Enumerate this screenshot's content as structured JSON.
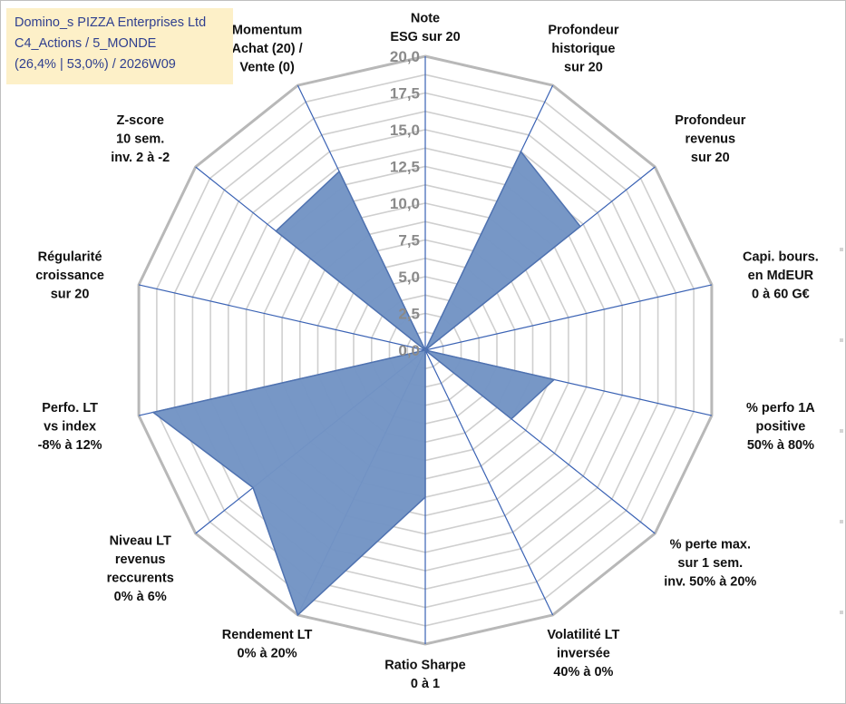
{
  "info_box": {
    "line1": "Domino_s PIZZA Enterprises Ltd",
    "line2": "C4_Actions / 5_MONDE",
    "line3": "(26,4% | 53,0%) / 2026W09"
  },
  "colors": {
    "series_fill": "#7394c4",
    "series_stroke": "#4f72b0",
    "spoke": "#3a62b4",
    "outer_ring": "#b8b8b8",
    "inner_ring": "#cfcfcf",
    "info_box_bg": "#fdf0c8",
    "info_box_text": "#2f3f8f",
    "label_text": "#111111",
    "tick_text": "#8a8a8a"
  },
  "chart_data": {
    "type": "radar",
    "title": "",
    "rmin": 0,
    "rmax": 20,
    "rings": 16,
    "grid": true,
    "legend": "none",
    "tick_labels": [
      "0,0",
      "2,5",
      "5,0",
      "7,5",
      "10,0",
      "12,5",
      "15,0",
      "17,5",
      "20,0"
    ],
    "axes": [
      [
        "Note",
        "ESG sur 20"
      ],
      [
        "Profondeur",
        "historique",
        "sur 20"
      ],
      [
        "Profondeur",
        "revenus",
        "sur 20"
      ],
      [
        "Capi. bours.",
        "en MdEUR",
        "0 à 60 G€"
      ],
      [
        "% perfo 1A",
        "positive",
        "50% à 80%"
      ],
      [
        "% perte max.",
        "sur 1 sem.",
        "inv. 50% à 20%"
      ],
      [
        "Volatilité LT",
        "inversée",
        "40% à 0%"
      ],
      [
        "Ratio Sharpe",
        "0 à 1"
      ],
      [
        "Rendement LT",
        "0% à 20%"
      ],
      [
        "Niveau LT",
        "revenus",
        "reccurents",
        "0% à 6%"
      ],
      [
        "Perfo. LT",
        "vs index",
        "-8% à 12%"
      ],
      [
        "Régularité",
        "croissance",
        "sur 20"
      ],
      [
        "Z-score",
        "10 sem.",
        "inv. 2 à -2"
      ],
      [
        "Momentum",
        "Achat (20) /",
        "Vente (0)"
      ]
    ],
    "series": [
      {
        "values": [
          0,
          15.0,
          13.5,
          0,
          9.0,
          7.5,
          0,
          10.0,
          20.0,
          15.0,
          19.0,
          0,
          13.0,
          13.5
        ]
      }
    ]
  }
}
